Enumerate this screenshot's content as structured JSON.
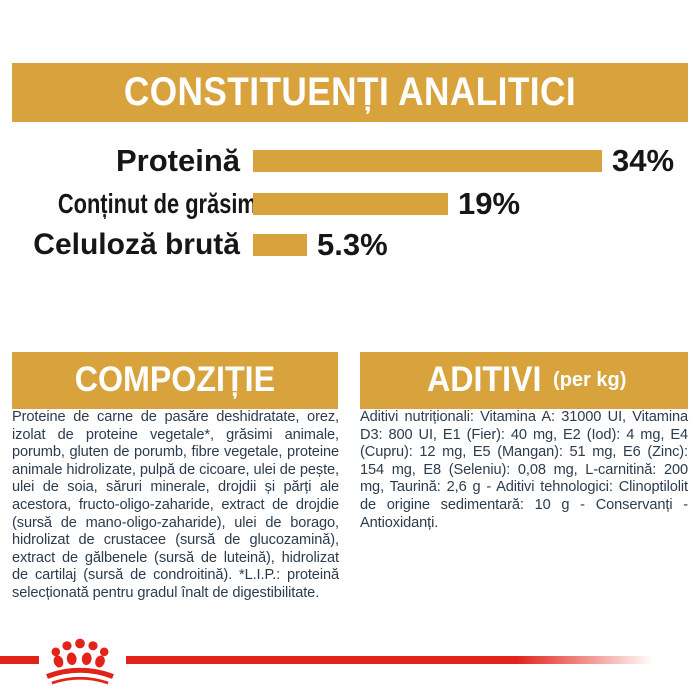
{
  "colors": {
    "gold": "#D8A33D",
    "red": "#E2231A",
    "chart_text": "#161616",
    "body_text": "#2C3C4E",
    "band_text": "#FFFFFF",
    "background": "#FFFFFF"
  },
  "header": {
    "title": "CONSTITUENȚI ANALITICI"
  },
  "chart_data": {
    "type": "bar",
    "orientation": "horizontal",
    "title": "CONSTITUENȚI ANALITICI",
    "categories": [
      "Proteină",
      "Conținut de grăsimi",
      "Celuloză brută"
    ],
    "values": [
      34,
      19,
      5.3
    ],
    "value_labels": [
      "34%",
      "19%",
      "5.3%"
    ],
    "unit": "%",
    "xlim": [
      0,
      34
    ],
    "bar_color": "#D8A33D",
    "grid": "off",
    "legend": "none"
  },
  "sections": {
    "composition": {
      "title": "COMPOZIȚIE",
      "body": "Proteine de carne de pasăre deshidratate, orez, izolat de proteine vegetale*, grăsimi animale, porumb, gluten de porumb, fibre vegetale, proteine animale hidrolizate, pulpă de cicoare, ulei de pește, ulei de soia, săruri minerale, drojdii și părți ale acestora, fructo-oligo-zaharide, extract de drojdie (sursă de mano-oligo-zaharide), ulei de borago, hidrolizat de crustacee (sursă de glucozamină), extract de gălbenele (sursă de luteină), hidrolizat de cartilaj (sursă de condroitină). *L.I.P.: proteină selecționată pentru gradul înalt de digestibilitate."
    },
    "additives": {
      "title": "ADITIVI",
      "title_suffix": "(per kg)",
      "body": "Aditivi nutriționali: Vitamina A: 31000 UI, Vitamina D3: 800 UI, E1 (Fier): 40 mg, E2 (Iod): 4 mg, E4 (Cupru): 12 mg, E5 (Mangan): 51 mg, E6 (Zinc): 154 mg, E8 (Seleniu): 0,08 mg, L-carnitină: 200 mg, Taurină: 2,6 g - Aditivi tehnologici: Clinoptilolit de origine sedimentară: 10 g - Conservanți - Antioxidanți."
    }
  },
  "footer": {
    "logo": "royal-canin-crown-paw",
    "line_color": "#E2231A"
  }
}
